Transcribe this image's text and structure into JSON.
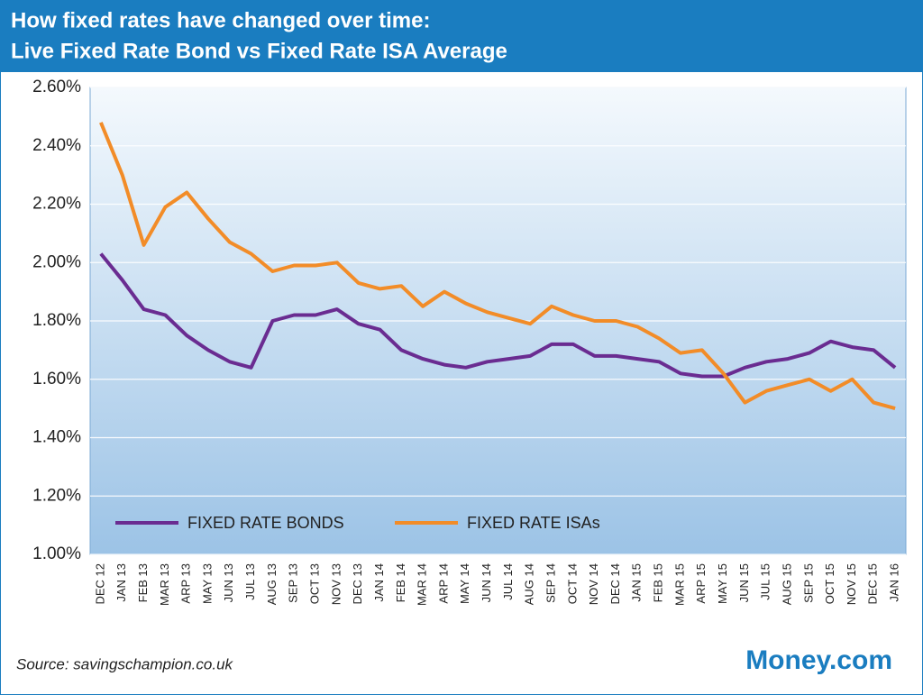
{
  "chart_data": {
    "type": "line",
    "title": "How fixed rates have changed over time:",
    "subtitle": "Live Fixed Rate Bond vs Fixed Rate ISA Average",
    "categories": [
      "DEC 12",
      "JAN 13",
      "FEB 13",
      "MAR 13",
      "ARP 13",
      "MAY 13",
      "JUN 13",
      "JUL 13",
      "AUG 13",
      "SEP 13",
      "OCT 13",
      "NOV 13",
      "DEC 13",
      "JAN 14",
      "FEB 14",
      "MAR 14",
      "ARP 14",
      "MAY 14",
      "JUN 14",
      "JUL 14",
      "AUG 14",
      "SEP 14",
      "OCT 14",
      "NOV 14",
      "DEC 14",
      "JAN 15",
      "FEB 15",
      "MAR 15",
      "ARP 15",
      "MAY 15",
      "JUN 15",
      "JUL 15",
      "AUG 15",
      "SEP 15",
      "OCT 15",
      "NOV 15",
      "DEC 15",
      "JAN 16"
    ],
    "series": [
      {
        "name": "FIXED RATE BONDS",
        "color": "#6a2c91",
        "values": [
          2.03,
          1.94,
          1.84,
          1.82,
          1.75,
          1.7,
          1.66,
          1.64,
          1.8,
          1.82,
          1.82,
          1.84,
          1.79,
          1.77,
          1.7,
          1.67,
          1.65,
          1.64,
          1.66,
          1.67,
          1.68,
          1.72,
          1.72,
          1.68,
          1.68,
          1.67,
          1.66,
          1.62,
          1.61,
          1.61,
          1.64,
          1.66,
          1.67,
          1.69,
          1.73,
          1.71,
          1.7,
          1.64
        ]
      },
      {
        "name": "FIXED RATE ISAs",
        "color": "#f28c28",
        "values": [
          2.48,
          2.3,
          2.06,
          2.19,
          2.24,
          2.15,
          2.07,
          2.03,
          1.97,
          1.99,
          1.99,
          2.0,
          1.93,
          1.91,
          1.92,
          1.85,
          1.9,
          1.86,
          1.83,
          1.81,
          1.79,
          1.85,
          1.82,
          1.8,
          1.8,
          1.78,
          1.74,
          1.69,
          1.7,
          1.62,
          1.52,
          1.56,
          1.58,
          1.6,
          1.56,
          1.6,
          1.52,
          1.5
        ]
      }
    ],
    "ylim": [
      1.0,
      2.6
    ],
    "yticks": [
      {
        "value": 1.0,
        "label": "1.00%"
      },
      {
        "value": 1.2,
        "label": "1.20%"
      },
      {
        "value": 1.4,
        "label": "1.40%"
      },
      {
        "value": 1.6,
        "label": "1.60%"
      },
      {
        "value": 1.8,
        "label": "1.80%"
      },
      {
        "value": 2.0,
        "label": "2.00%"
      },
      {
        "value": 2.2,
        "label": "2.20%"
      },
      {
        "value": 2.4,
        "label": "2.40%"
      },
      {
        "value": 2.6,
        "label": "2.60%"
      }
    ],
    "grid": true,
    "source": "Source: savingschampion.co.uk",
    "logo": "Money.com"
  }
}
